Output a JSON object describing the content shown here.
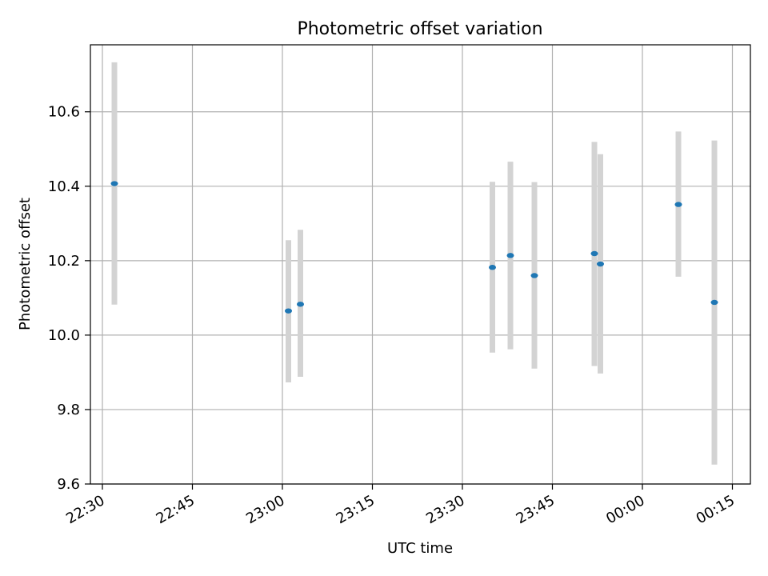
{
  "chart_data": {
    "type": "scatter",
    "title": "Photometric offset variation",
    "xlabel": "UTC time",
    "ylabel": "Photometric offset",
    "x_axis_type": "time",
    "xlim": [
      "22:28",
      "00:18"
    ],
    "ylim": [
      9.6,
      10.78
    ],
    "x_ticks": [
      "22:30",
      "22:45",
      "23:00",
      "23:15",
      "23:30",
      "23:45",
      "00:00",
      "00:15"
    ],
    "y_ticks": [
      "9.6",
      "9.8",
      "10.0",
      "10.2",
      "10.4",
      "10.6"
    ],
    "grid": true,
    "legend": "none",
    "marker_color": "#1f77b4",
    "errorbar_color": "#d3d3d3",
    "points": [
      {
        "x": "22:32",
        "y": 10.407,
        "err_low": 10.082,
        "err_high": 10.733
      },
      {
        "x": "23:01",
        "y": 10.065,
        "err_low": 9.873,
        "err_high": 10.255
      },
      {
        "x": "23:03",
        "y": 10.083,
        "err_low": 9.888,
        "err_high": 10.283
      },
      {
        "x": "23:35",
        "y": 10.182,
        "err_low": 9.953,
        "err_high": 10.412
      },
      {
        "x": "23:38",
        "y": 10.214,
        "err_low": 9.962,
        "err_high": 10.466
      },
      {
        "x": "23:42",
        "y": 10.16,
        "err_low": 9.91,
        "err_high": 10.411
      },
      {
        "x": "23:52",
        "y": 10.219,
        "err_low": 9.917,
        "err_high": 10.519
      },
      {
        "x": "23:53",
        "y": 10.191,
        "err_low": 9.897,
        "err_high": 10.486
      },
      {
        "x": "00:06",
        "y": 10.351,
        "err_low": 10.157,
        "err_high": 10.547
      },
      {
        "x": "00:12",
        "y": 10.088,
        "err_low": 9.652,
        "err_high": 10.523
      }
    ]
  }
}
